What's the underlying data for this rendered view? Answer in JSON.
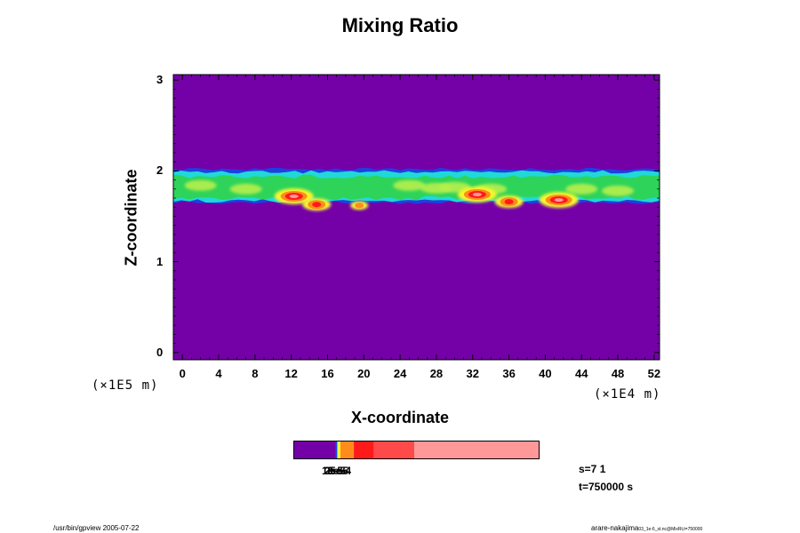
{
  "chart_data": {
    "type": "heatmap",
    "title": "Mixing Ratio",
    "xlabel": "X-coordinate",
    "ylabel": "Z-coordinate",
    "x_ticks": [
      "0",
      "4",
      "8",
      "12",
      "16",
      "20",
      "24",
      "28",
      "32",
      "36",
      "40",
      "44",
      "48",
      "52"
    ],
    "y_ticks": [
      "0",
      "1",
      "2",
      "3"
    ],
    "x_unit": "(×1E4 m)",
    "y_unit": "(×1E5 m)",
    "xlim": [
      -1,
      52.6
    ],
    "ylim": [
      -0.08,
      3.06
    ],
    "layer": {
      "z_bottom": 1.65,
      "z_top": 2.02
    },
    "hotspots": [
      {
        "x": 12.3,
        "z": 1.72,
        "level": "high"
      },
      {
        "x": 14.8,
        "z": 1.63,
        "level": "medium"
      },
      {
        "x": 19.5,
        "z": 1.62,
        "level": "low"
      },
      {
        "x": 32.5,
        "z": 1.74,
        "level": "high"
      },
      {
        "x": 36.0,
        "z": 1.66,
        "level": "medium"
      },
      {
        "x": 41.5,
        "z": 1.68,
        "level": "high"
      }
    ],
    "colors": {
      "background": "#7400a8",
      "blue": "#1f3fe0",
      "cyan": "#20d8d8",
      "green": "#2ed35a",
      "lightgreen": "#b7ef4e",
      "yellow": "#f7f52e",
      "orange": "#ff8c1a",
      "red": "#ff1a1a",
      "pink": "#ff9999"
    },
    "colorbar": {
      "segments": [
        {
          "color": "#7400a8",
          "width": 0.17
        },
        {
          "color": "#1f3fe0",
          "width": 0.004
        },
        {
          "color": "#20d8d8",
          "width": 0.004
        },
        {
          "color": "#f7f52e",
          "width": 0.01
        },
        {
          "color": "#ff8c1a",
          "width": 0.055
        },
        {
          "color": "#ff1a1a",
          "width": 0.082
        },
        {
          "color": "#ff4a4a",
          "width": 0.165
        },
        {
          "color": "#ff9999",
          "width": 0.51
        }
      ],
      "labels": [
        "1e-5",
        "2e-5",
        "3e-5",
        "5e-4"
      ]
    }
  },
  "info": {
    "step": "s=7 1",
    "time": "t=750000 s"
  },
  "footer": {
    "left": "/usr/bin/gpview 2005-07-22",
    "right_main": "arare-nakajima",
    "right_sub": "03_1e-6_st.nc@MixRt,t=750000"
  }
}
